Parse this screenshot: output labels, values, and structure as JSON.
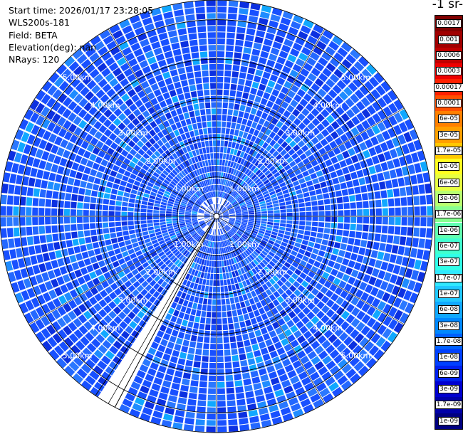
{
  "header": {
    "start_time": "Start time: 2026/01/17 23:28:05",
    "instrument": "WLS200s-181",
    "field": "Field: BETA",
    "elevation": "Elevation(deg): nan",
    "nrays": "NRays: 120"
  },
  "colorbar": {
    "title": "-1 sr-",
    "labels": [
      "0.0017",
      "0.001",
      "0.0006",
      "0.0003",
      "0.00017",
      "0.0001",
      "6e-05",
      "3e-05",
      "1.7e-05",
      "1e-05",
      "6e-06",
      "3e-06",
      "1.7e-06",
      "1e-06",
      "6e-07",
      "3e-07",
      "1.7e-07",
      "1e-07",
      "6e-08",
      "3e-08",
      "1.7e-08",
      "1e-08",
      "6e-09",
      "3e-09",
      "1.7e-09",
      "1e-09"
    ],
    "colors": [
      "#800000",
      "#a00000",
      "#c00000",
      "#ee0000",
      "#ff2000",
      "#ff5000",
      "#ff8000",
      "#ffa000",
      "#ffc800",
      "#ffff20",
      "#e8ff40",
      "#b8ff70",
      "#88ff90",
      "#60ffb0",
      "#40ffd0",
      "#30ffe8",
      "#30e8ff",
      "#20c8ff",
      "#10a8ff",
      "#0088ff",
      "#0060ff",
      "#0040ff",
      "#0020ee",
      "#0000d0",
      "#0000a8",
      "#000080"
    ]
  },
  "chart_data": {
    "type": "ppi",
    "n_rays": 120,
    "range_labels": [
      "1.00km",
      "2.00km",
      "3.00km",
      "4.00km",
      "5.00km"
    ],
    "range_rings_km": [
      1,
      2,
      3,
      4,
      5
    ],
    "max_range_km": 5.5,
    "missing_sector_deg": [
      236,
      242
    ],
    "dominant_color": "#2060ff"
  }
}
